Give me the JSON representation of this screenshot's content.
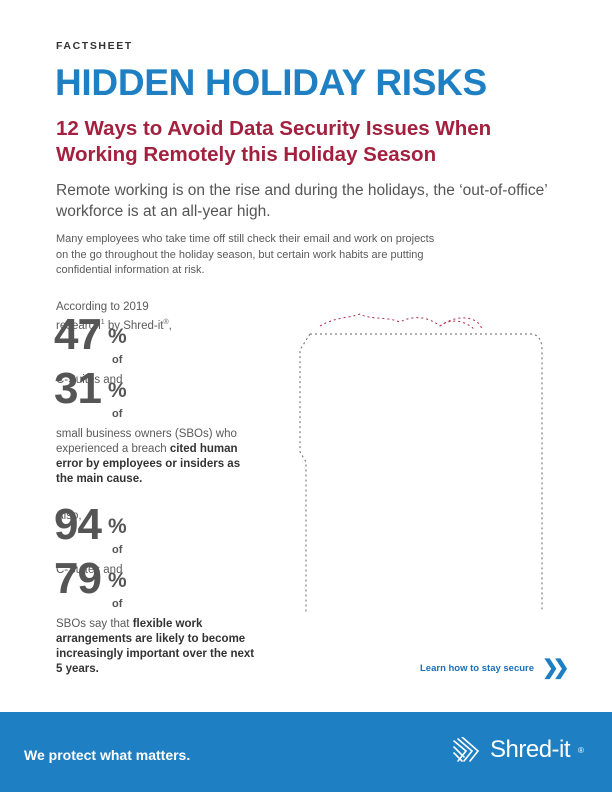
{
  "header": {
    "eyebrow": "FACTSHEET",
    "title": "HIDDEN HOLIDAY RISKS",
    "subtitle": "12 Ways to Avoid Data Security Issues When Working Remotely this Holiday Season"
  },
  "intro": {
    "lead": "Remote working is on the rise and during the holidays, the ‘out-of-office’ workforce is at an all-year high.",
    "body": "Many employees who take time off still check their email and work on projects on the go throughout the holiday season, but certain work habits are putting confidential information at risk."
  },
  "stats": {
    "intro_line1": "According to 2019",
    "intro_line2": "research",
    "intro_sup": "1",
    "intro_line2b": " by Shred-it",
    "intro_reg": "®",
    "intro_end": ",",
    "s1_num": "47",
    "pct": "%",
    "of": "of",
    "s1_label": "C-Suites and",
    "s2_num": "31",
    "s2_label": "small business owners (SBOs) who experienced a breach",
    "s2_bold": "cited human error by employees or insiders as the main cause.",
    "also": "Also,",
    "s3_num": "94",
    "s3_label": "C-Suites and",
    "s4_num": "79",
    "s4_label": "SBOs say that",
    "s4_bold": "flexible work arrangements are likely to become increasingly important over the next 5 years."
  },
  "cta": {
    "label": "Learn how to stay secure",
    "chevron": "❯❯"
  },
  "footer": {
    "tagline": "We protect what matters.",
    "brand": "Shred-it",
    "reg": "®"
  },
  "colors": {
    "blue": "#1e7fc2",
    "maroon": "#a3213f",
    "text": "#555555"
  }
}
